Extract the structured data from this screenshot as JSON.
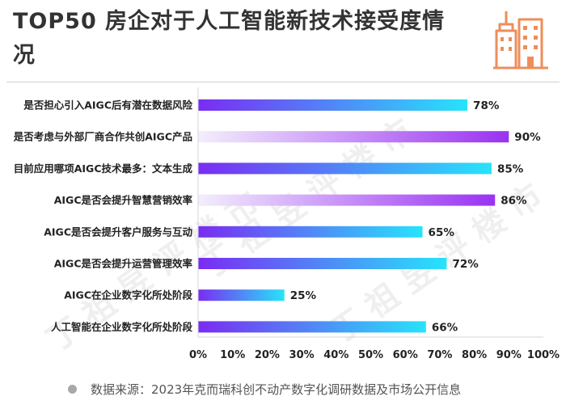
{
  "title": "TOP50 房企对于人工智能新技术接受度情况",
  "source": "数据来源：2023年克而瑞科创不动产数字化调研数据及市场公开信息",
  "colors": {
    "bar_start": "#7a2cf2",
    "bar_end": "#27e3fb",
    "bar_pale_start": "#f3eefc",
    "bar_pale_end": "#9a32f2",
    "logo": "#ee8e5a"
  },
  "chart_data": {
    "type": "bar",
    "orientation": "horizontal",
    "categories": [
      "是否担心引入AIGC后有潜在数据风险",
      "是否考虑与外部厂商合作共创AIGC产品",
      "目前应用哪项AIGC技术最多：文本生成",
      "AIGC是否会提升智慧营销效率",
      "AIGC是否会提升客户服务与互动",
      "AIGC是否会提升运营管理效率",
      "AIGC在企业数字化所处阶段",
      "人工智能在企业数字化所处阶段"
    ],
    "values": [
      78,
      90,
      85,
      86,
      65,
      72,
      25,
      66
    ],
    "data_labels": [
      "78%",
      "90%",
      "85%",
      "86%",
      "65%",
      "72%",
      "25%",
      "66%"
    ],
    "gradient_style": [
      "purple-cyan",
      "pale-purple",
      "purple-cyan",
      "pale-purple",
      "purple-cyan",
      "purple-cyan",
      "purple-cyan",
      "purple-cyan"
    ],
    "xlim": [
      0,
      100
    ],
    "xticks": [
      "0%",
      "10%",
      "20%",
      "30%",
      "40%",
      "50%",
      "60%",
      "70%",
      "80%",
      "90%",
      "100%"
    ],
    "title": "TOP50 房企对于人工智能新技术接受度情况",
    "xlabel": "",
    "ylabel": "",
    "grid": false
  }
}
